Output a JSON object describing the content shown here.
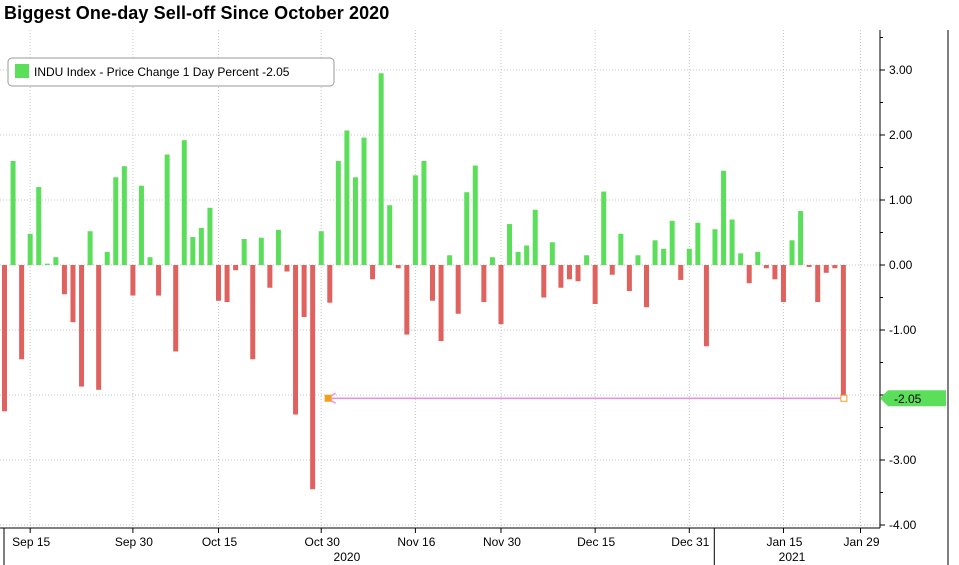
{
  "chart_data": {
    "type": "bar",
    "title": "Biggest One-day Sell-off Since October 2020",
    "legend": {
      "label": "INDU Index - Price Change 1 Day Percent -2.05",
      "placement": "top-left"
    },
    "series": [
      {
        "name": "INDU Index - Price Change 1 Day Percent",
        "values": [
          -2.25,
          1.6,
          -1.45,
          0.48,
          1.2,
          0.02,
          0.12,
          -0.45,
          -0.88,
          -1.87,
          0.52,
          -1.92,
          0.2,
          1.35,
          1.52,
          -0.47,
          1.22,
          0.12,
          -0.47,
          1.7,
          -1.33,
          1.92,
          0.43,
          0.57,
          0.88,
          -0.55,
          -0.57,
          -0.08,
          0.4,
          -1.45,
          0.42,
          -0.35,
          0.54,
          -0.1,
          -2.3,
          -0.8,
          -3.45,
          0.52,
          -0.58,
          1.6,
          2.07,
          1.35,
          1.96,
          -0.22,
          2.95,
          0.92,
          -0.05,
          -1.07,
          1.38,
          1.6,
          -0.55,
          -1.17,
          0.15,
          -0.75,
          1.12,
          1.53,
          -0.57,
          0.12,
          -0.91,
          0.63,
          0.2,
          0.3,
          0.85,
          -0.5,
          0.35,
          -0.35,
          -0.22,
          -0.25,
          0.15,
          -0.6,
          1.13,
          -0.15,
          0.48,
          -0.4,
          0.15,
          -0.65,
          0.38,
          0.25,
          0.68,
          -0.23,
          0.25,
          0.65,
          -1.25,
          0.55,
          1.45,
          0.7,
          0.18,
          -0.28,
          0.2,
          -0.05,
          -0.22,
          -0.57,
          0.38,
          0.83,
          -0.03,
          -0.57,
          -0.12,
          -0.05,
          -2.05
        ]
      }
    ],
    "up_color": "#5bdf5b",
    "down_color": "#e0625f",
    "highlight": {
      "value": -2.05,
      "label": "-2.05",
      "color": "#5bdf5b",
      "reference_line_color": "#f08ee0",
      "marker_color": "#f0a020"
    },
    "y_axis": {
      "ylim": [
        -4.0,
        3.5
      ],
      "ticks": [
        3.0,
        2.0,
        1.0,
        0.0,
        -1.0,
        -2.0,
        -3.0,
        -4.0
      ],
      "tick_labels": [
        "3.00",
        "2.00",
        "1.00",
        "0.00",
        "-1.00",
        "-2.00",
        "-3.00",
        "-4.00"
      ],
      "position": "right"
    },
    "x_axis": {
      "tick_labels": [
        "Sep 15",
        "Sep 30",
        "Oct 15",
        "Oct 30",
        "Nov 16",
        "Nov 30",
        "Dec 15",
        "Dec 31",
        "Jan 15",
        "Jan 29"
      ],
      "tick_bar_index": [
        3,
        15,
        25,
        37,
        48,
        58,
        69,
        80,
        91,
        100
      ],
      "year_labels": [
        "2020",
        "2021"
      ],
      "year_bar_index": [
        40,
        92
      ]
    },
    "grid": true
  }
}
